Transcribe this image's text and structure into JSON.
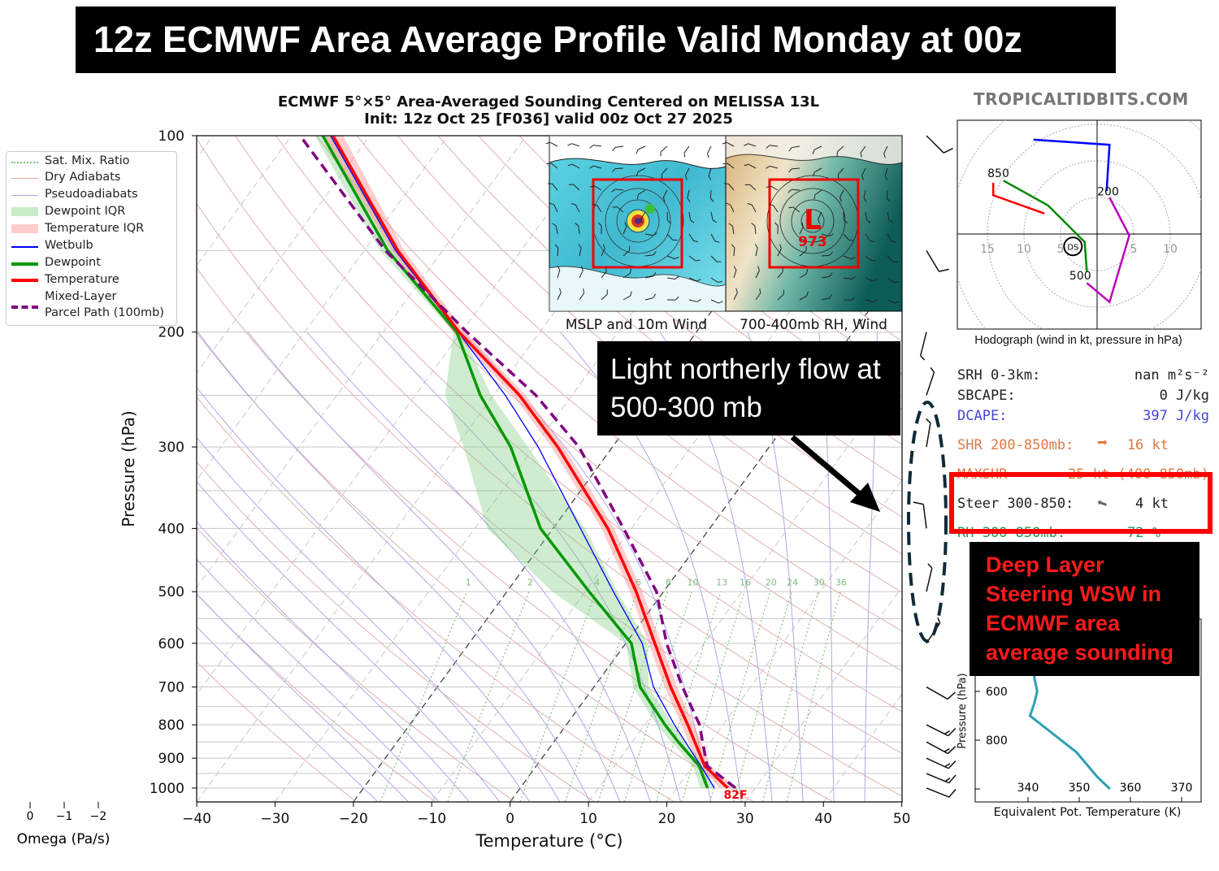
{
  "banner": {
    "title": "12z ECMWF Area Average Profile Valid Monday at 00z"
  },
  "site": "TROPICALTIDBITS.COM",
  "chart_data": {
    "type": "line",
    "title": "ECMWF 5°×5° Area-Averaged Sounding Centered on MELISSA 13L",
    "subtitle": "Init: 12z Oct 25 [F036] valid 00z Oct 27 2025",
    "xlabel": "Temperature (°C)",
    "ylabel": "Pressure (hPa)",
    "xlim": [
      -40,
      50
    ],
    "ylim": [
      1050,
      100
    ],
    "y_scale": "log",
    "skewed": true,
    "grid": true,
    "legend_placement": "left",
    "x_ticks": [
      "−40",
      "−30",
      "−20",
      "−10",
      "0",
      "10",
      "20",
      "30",
      "40",
      "50"
    ],
    "y_ticks": [
      "100",
      "200",
      "300",
      "400",
      "500",
      "600",
      "700",
      "800",
      "900",
      "1000"
    ],
    "pressure": [
      1000,
      925,
      850,
      800,
      700,
      600,
      500,
      400,
      300,
      250,
      200,
      150,
      100
    ],
    "series": [
      {
        "name": "Temperature",
        "color": "#ff0000",
        "values": [
          26.5,
          21.5,
          18,
          15.5,
          9.8,
          3.7,
          -3.5,
          -13,
          -27,
          -36.7,
          -50.3,
          -65.7,
          -84.7
        ]
      },
      {
        "name": "Dewpoint",
        "color": "#009900",
        "values": [
          23.9,
          20.8,
          15.9,
          12.6,
          5.9,
          0.7,
          -9.5,
          -21.6,
          -33,
          -41.7,
          -50.6,
          -67,
          -86
        ]
      },
      {
        "name": "Wetbulb",
        "color": "#0000ff",
        "values": [
          24.8,
          21,
          16.8,
          13.8,
          7.6,
          2.1,
          -6.4,
          -16.5,
          -29.5,
          -38.5,
          -50.4,
          -66,
          -85
        ]
      },
      {
        "name": "Mixed-Layer Parcel Path (100mb)",
        "color": "#800080",
        "values": [
          27.5,
          21.8,
          19,
          17,
          11.3,
          5.2,
          -0.9,
          -11,
          -24.3,
          -34.6,
          -49.3,
          -67.3,
          -88.9
        ]
      }
    ],
    "dewpoint_iqr": {
      "name": "Dewpoint IQR",
      "low": [
        23,
        20,
        15,
        11.5,
        5,
        0,
        -14.2,
        -28.4,
        -39,
        -46.2,
        -51,
        -68,
        -87
      ],
      "high": [
        24.8,
        21.6,
        16.8,
        13.6,
        7,
        2.8,
        -5.9,
        -15.9,
        -30.8,
        -40.3,
        -50,
        -66,
        -85
      ]
    },
    "temperature_iqr": {
      "name": "Temperature IQR",
      "low": [
        25.5,
        20.7,
        17.2,
        14.7,
        9,
        2.9,
        -4.3,
        -13.8,
        -27.8,
        -37.5,
        -51.1,
        -66.5,
        -86
      ]
    },
    "temperature_iqr_high": [
      27.5,
      22.3,
      18.8,
      16.3,
      10.6,
      4.5,
      -2.7,
      -12.2,
      -26.2,
      -35.9,
      -49.5,
      -64.9,
      -83.4
    ],
    "highlighted_isotherms": [
      0,
      -20
    ],
    "mixing_ratio_labels": [
      "1",
      "2",
      "4",
      "6",
      "8",
      "10",
      "13",
      "16",
      "20",
      "24",
      "30",
      "36"
    ],
    "mixing_ratio_values": [
      1,
      2,
      4,
      6,
      8,
      10,
      13,
      16,
      20,
      24,
      30,
      36
    ],
    "surface_temp_label": "82F",
    "legend": [
      "Sat. Mix. Ratio",
      "Dry Adiabats",
      "Pseudoadiabats",
      "Dewpoint IQR",
      "Temperature IQR",
      "Wetbulb",
      "Dewpoint",
      "Temperature",
      "Mixed-Layer",
      "Parcel Path (100mb)"
    ],
    "omega_axis": {
      "label": "Omega (Pa/s)",
      "ticks": [
        "0",
        "−1",
        "−2"
      ]
    },
    "wind_barbs_kt": [
      {
        "p": 100,
        "u": -8,
        "v": 8
      },
      {
        "p": 150,
        "u": -6,
        "v": 10
      },
      {
        "p": 200,
        "u": 1.5,
        "v": 6
      },
      {
        "p": 250,
        "u": -2,
        "v": -6
      },
      {
        "p": 300,
        "u": -1,
        "v": -6
      },
      {
        "p": 400,
        "u": 1,
        "v": -8
      },
      {
        "p": 500,
        "u": -1.4,
        "v": -6
      },
      {
        "p": 600,
        "u": -2,
        "v": -3
      },
      {
        "p": 700,
        "u": -7,
        "v": 4
      },
      {
        "p": 800,
        "u": -12,
        "v": 6
      },
      {
        "p": 850,
        "u": -13,
        "v": 7
      },
      {
        "p": 900,
        "u": -13,
        "v": 6
      },
      {
        "p": 950,
        "u": -12,
        "v": 5
      },
      {
        "p": 1000,
        "u": -10,
        "v": 4
      }
    ]
  },
  "insets": {
    "left_label": "MSLP and 10m Wind",
    "right_label": "700-400mb RH, Wind",
    "low_letter": "L",
    "low_pressure": "973"
  },
  "hodograph": {
    "caption": "Hodograph (wind in kt, pressure in hPa)",
    "ring_labels_left": [
      "15",
      "10",
      "5"
    ],
    "ring_labels_right": [
      "5",
      "10"
    ],
    "pressure_labels": [
      "850",
      "200",
      "500"
    ],
    "storm_motion_label": "DS",
    "segments": [
      {
        "color": "#ff0000",
        "points": [
          [
            -7.2,
            2.8
          ],
          [
            -14.2,
            5.3
          ],
          [
            -14.2,
            7
          ]
        ]
      },
      {
        "color": "#008800",
        "points": [
          [
            -12.8,
            7.3
          ],
          [
            -6.7,
            3.9
          ],
          [
            -1.7,
            -1.1
          ],
          [
            -1.4,
            -5.2
          ]
        ]
      },
      {
        "color": "#bb00bb",
        "points": [
          [
            -1.4,
            -6.7
          ],
          [
            1.7,
            -9.3
          ],
          [
            4.4,
            -0.2
          ],
          [
            1.7,
            5
          ]
        ]
      },
      {
        "color": "#0000ff",
        "points": [
          [
            1.3,
            5.9
          ],
          [
            1.7,
            12.2
          ],
          [
            -8.7,
            12.9
          ]
        ]
      }
    ],
    "storm_motion": [
      -3.3,
      -1.7
    ]
  },
  "stats": [
    {
      "label": "SRH 0-3km:",
      "value": "nan m²s⁻²",
      "color": "#222222"
    },
    {
      "label": "SBCAPE:",
      "value": "0 J/kg",
      "color": "#222222"
    },
    {
      "label": "DCAPE:",
      "value": "397 J/kg",
      "color": "#4444dd"
    },
    {
      "label": "SHR 200-850mb:",
      "value": "16 kt",
      "color": "#dd7744"
    },
    {
      "label": "MAXSHR",
      "value": "25 kt (400-850mb)",
      "color": "#dd7744"
    },
    {
      "label": "Steer 300-850:",
      "value": "4 kt",
      "color": "#222222"
    },
    {
      "label": "RH 300-850mb:",
      "value": "72 %",
      "color": "#229955"
    }
  ],
  "theta_e": {
    "xlabel": "Equivalent Pot. Temperature (K)",
    "ylabel": "Pressure (hPa)",
    "x_ticks": [
      "340",
      "350",
      "360",
      "370"
    ],
    "y_ticks": [
      "600",
      "800"
    ],
    "pressure": [
      1000,
      950,
      900,
      850,
      700,
      650,
      600,
      550,
      500
    ],
    "values": [
      356,
      353.5,
      351.5,
      349.5,
      340.4,
      341.2,
      341.8,
      341.3,
      341
    ],
    "color": "#2f9fb5"
  },
  "annotations": {
    "northerly_note": "Light northerly flow at 500-300 mb",
    "steering_note": "Deep Layer Steering WSW in ECMWF area average sounding",
    "highlight_color": "#ff0000"
  }
}
